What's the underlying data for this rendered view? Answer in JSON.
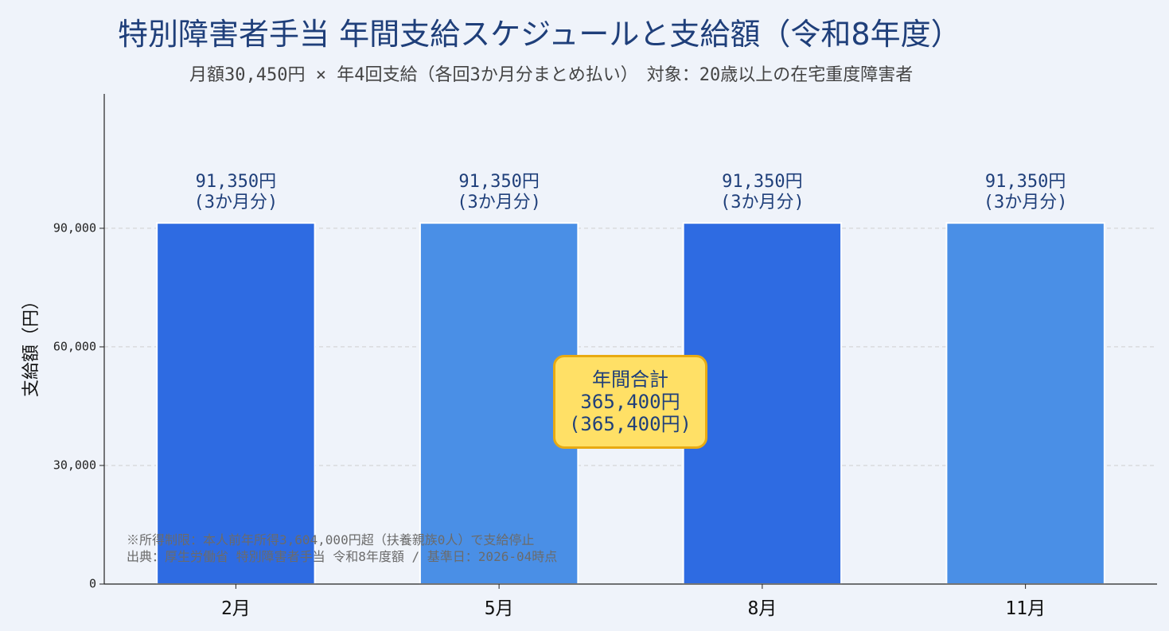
{
  "chart_data": {
    "type": "bar",
    "title": "特別障害者手当 年間支給スケジュールと支給額（令和8年度）",
    "subtitle": "月額30,450円 × 年4回支給（各回3か月分まとめ払い）　対象：20歳以上の在宅重度障害者",
    "categories": [
      "2月",
      "5月",
      "8月",
      "11月"
    ],
    "values": [
      91350,
      91350,
      91350,
      91350
    ],
    "bar_labels": [
      {
        "amount": "91,350円",
        "period": "(3か月分)"
      },
      {
        "amount": "91,350円",
        "period": "(3か月分)"
      },
      {
        "amount": "91,350円",
        "period": "(3か月分)"
      },
      {
        "amount": "91,350円",
        "period": "(3か月分)"
      }
    ],
    "bar_colors": [
      "#2e6be2",
      "#4a8fe6",
      "#2e6be2",
      "#4a8fe6"
    ],
    "xlabel": "",
    "ylabel": "支給額（円）",
    "ylim": [
      0,
      124000
    ],
    "yticks": [
      0,
      30000,
      60000,
      90000
    ],
    "ytick_labels": [
      "0",
      "30,000",
      "60,000",
      "90,000"
    ],
    "grid": true,
    "annotation": {
      "line1": "年間合計",
      "line2": "365,400円",
      "line3": "(365,400円)"
    },
    "notes": [
      "※所得制限：本人前年所得3,604,000円超（扶養親族0人）で支給停止",
      "出典：厚生労働省 特別障害者手当 令和8年度額 / 基準日：2026-04時点"
    ]
  },
  "colors": {
    "background": "#eff3fa",
    "title": "#1f3f7a",
    "grid": "#cfcfcf",
    "annotation_fill": "#ffe066",
    "annotation_border": "#e8aa12"
  }
}
